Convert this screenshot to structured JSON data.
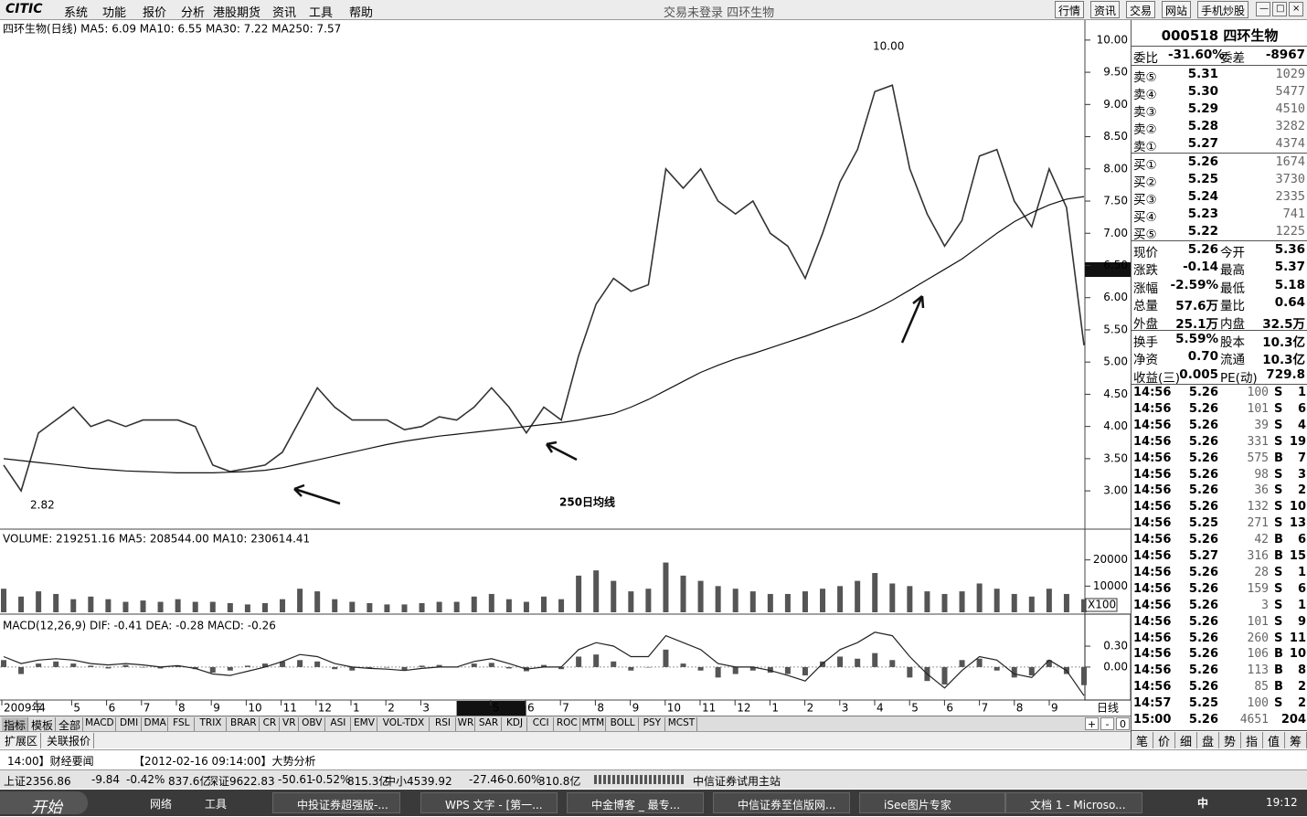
{
  "menu": {
    "logo": "CITIC",
    "items": [
      "系统",
      "功能",
      "报价",
      "分析",
      "港股期货",
      "资讯",
      "工具",
      "帮助"
    ],
    "status": "交易未登录  四环生物",
    "buttons": [
      "行情",
      "资讯",
      "交易",
      "网站",
      "手机炒股"
    ]
  },
  "chart_data": [
    {
      "type": "line",
      "title": "四环生物(日线) MA5: 6.09 MA10: 6.55 MA30: 7.22 MA250: 7.57",
      "ylim": [
        2.42,
        10.31
      ],
      "yticks": [
        {
          "value": 3,
          "label": "3.00"
        },
        {
          "value": 3.5,
          "label": "3.50"
        },
        {
          "value": 4,
          "label": "4.00"
        },
        {
          "value": 4.5,
          "label": "4.50"
        },
        {
          "value": 5,
          "label": "5.00"
        },
        {
          "value": 5.5,
          "label": "5.50"
        },
        {
          "value": 6,
          "label": "6.00"
        },
        {
          "value": 6.5,
          "label": "6.50"
        },
        {
          "value": 7,
          "label": "7.00"
        },
        {
          "value": 7.5,
          "label": "7.50"
        },
        {
          "value": 8,
          "label": "8.00"
        },
        {
          "value": 8.5,
          "label": "8.50"
        },
        {
          "value": 9,
          "label": "9.00"
        },
        {
          "value": 9.5,
          "label": "9.50"
        },
        {
          "value": 10,
          "label": "10.00"
        }
      ],
      "series": [
        {
          "type": "line",
          "color": "#333333",
          "values": [
            3.4,
            3.0,
            3.9,
            4.1,
            4.3,
            4.0,
            4.1,
            4.0,
            4.1,
            4.1,
            4.1,
            4.0,
            3.4,
            3.3,
            3.35,
            3.4,
            3.6,
            4.1,
            4.6,
            4.3,
            4.1,
            4.1,
            4.1,
            3.95,
            4.0,
            4.15,
            4.1,
            4.3,
            4.6,
            4.3,
            3.9,
            4.3,
            4.1,
            5.1,
            5.9,
            6.3,
            6.1,
            6.2,
            8.0,
            7.7,
            8.0,
            7.5,
            7.3,
            7.5,
            7.0,
            6.8,
            6.3,
            7.0,
            7.8,
            8.3,
            9.2,
            9.3,
            8.0,
            7.3,
            6.8,
            7.2,
            8.2,
            8.3,
            7.5,
            7.1,
            8.0,
            7.4,
            5.26
          ]
        },
        {
          "type": "line",
          "color": "#111111",
          "values": [
            3.5,
            3.47,
            3.44,
            3.41,
            3.38,
            3.35,
            3.33,
            3.31,
            3.3,
            3.29,
            3.28,
            3.28,
            3.28,
            3.29,
            3.3,
            3.32,
            3.36,
            3.42,
            3.48,
            3.54,
            3.6,
            3.66,
            3.72,
            3.77,
            3.81,
            3.85,
            3.88,
            3.91,
            3.94,
            3.97,
            4.0,
            4.03,
            4.06,
            4.1,
            4.15,
            4.2,
            4.3,
            4.42,
            4.56,
            4.7,
            4.84,
            4.95,
            5.05,
            5.13,
            5.22,
            5.31,
            5.4,
            5.5,
            5.6,
            5.7,
            5.82,
            5.96,
            6.12,
            6.28,
            6.44,
            6.6,
            6.8,
            7.0,
            7.18,
            7.32,
            7.44,
            7.53,
            7.57
          ]
        }
      ],
      "annotations": [
        "10.00",
        "2.82",
        "250日均线"
      ]
    },
    {
      "type": "bar",
      "title": "VOLUME: 219251.16 MA5: 208544.00 MA10: 230614.41",
      "ylim": [
        0,
        31400
      ],
      "yticks": [
        10000,
        20000
      ],
      "unit": "X100",
      "series": [
        {
          "type": "bar",
          "color": "#555555",
          "values": [
            9000,
            6000,
            8000,
            7000,
            5000,
            6000,
            5000,
            4000,
            4500,
            4000,
            5000,
            4000,
            4000,
            3500,
            3000,
            3500,
            5000,
            9000,
            8000,
            5000,
            4000,
            3500,
            3000,
            3000,
            3500,
            4000,
            4000,
            6000,
            7000,
            5000,
            4000,
            6000,
            5000,
            14000,
            16000,
            12000,
            8000,
            9000,
            19000,
            14000,
            12000,
            10000,
            9000,
            8000,
            7000,
            7000,
            8000,
            9000,
            10000,
            12000,
            15000,
            11000,
            10000,
            8000,
            7000,
            8000,
            11000,
            9000,
            7000,
            6000,
            9000,
            7000,
            5000
          ]
        }
      ]
    },
    {
      "type": "bar",
      "title": "MACD(12,26,9) DIF: -0.41 DEA: -0.28 MACD: -0.26",
      "ylim": [
        -0.46,
        0.72
      ],
      "yticks": [
        {
          "value": 0.3,
          "label": "0.30"
        },
        {
          "value": 0,
          "label": "0.00"
        }
      ],
      "series": [
        {
          "type": "bar",
          "color": "#555555",
          "values": [
            0.1,
            -0.1,
            0.05,
            0.08,
            0.05,
            0.02,
            -0.02,
            0.03,
            0.0,
            -0.02,
            0.02,
            -0.03,
            -0.08,
            -0.05,
            0.02,
            0.05,
            0.08,
            0.1,
            0.08,
            -0.03,
            -0.05,
            -0.02,
            0.0,
            -0.04,
            0.02,
            0.03,
            0.0,
            0.05,
            0.06,
            -0.02,
            -0.06,
            0.03,
            -0.03,
            0.15,
            0.18,
            0.08,
            -0.05,
            0.0,
            0.25,
            0.05,
            -0.05,
            -0.15,
            -0.1,
            -0.05,
            -0.08,
            -0.1,
            -0.12,
            0.08,
            0.15,
            0.12,
            0.2,
            0.1,
            -0.15,
            -0.2,
            -0.25,
            0.1,
            0.12,
            -0.05,
            -0.15,
            -0.12,
            0.1,
            -0.1,
            -0.26
          ]
        },
        {
          "type": "line",
          "color": "#222222",
          "values": [
            0.15,
            0.05,
            0.1,
            0.12,
            0.1,
            0.05,
            0.03,
            0.05,
            0.03,
            0.0,
            0.02,
            -0.02,
            -0.1,
            -0.12,
            -0.06,
            0.0,
            0.08,
            0.18,
            0.15,
            0.05,
            0.0,
            -0.02,
            -0.03,
            -0.05,
            -0.02,
            0.0,
            0.0,
            0.08,
            0.12,
            0.05,
            -0.03,
            0.0,
            0.0,
            0.25,
            0.35,
            0.3,
            0.15,
            0.15,
            0.45,
            0.35,
            0.25,
            0.05,
            0.0,
            0.0,
            -0.05,
            -0.12,
            -0.2,
            0.05,
            0.25,
            0.35,
            0.5,
            0.45,
            0.15,
            -0.1,
            -0.3,
            -0.05,
            0.15,
            0.1,
            -0.1,
            -0.15,
            0.1,
            -0.05,
            -0.41
          ]
        }
      ]
    }
  ],
  "x_axis": {
    "months": [
      "2009年",
      "4",
      "5",
      "6",
      "7",
      "8",
      "9",
      "10",
      "11",
      "12",
      "1",
      "2",
      "3",
      null,
      "5",
      "6",
      "7",
      "8",
      "9",
      "10",
      "11",
      "12",
      "1",
      "2",
      "3",
      "4",
      "5",
      "6",
      "7",
      "8",
      "9"
    ],
    "end_label": "日线"
  },
  "indicator_tabs": [
    "指标",
    "模板",
    "全部",
    "MACD",
    "DMI",
    "DMA",
    "FSL",
    "TRIX",
    "BRAR",
    "CR",
    "VR",
    "OBV",
    "ASI",
    "EMV",
    "VOL-TDX",
    "RSI",
    "WR",
    "SAR",
    "KDJ",
    "CCI",
    "ROC",
    "MTM",
    "BOLL",
    "PSY",
    "MCST"
  ],
  "extra_tabs": [
    "扩展区",
    "关联报价"
  ],
  "quote": {
    "code": "000518 四环生物",
    "ratio": [
      "委比",
      "-31.60%",
      "委差",
      "-8967"
    ],
    "book": [
      [
        "卖⑤",
        "5.31",
        "1029"
      ],
      [
        "卖④",
        "5.30",
        "5477"
      ],
      [
        "卖③",
        "5.29",
        "4510"
      ],
      [
        "卖②",
        "5.28",
        "3282"
      ],
      [
        "卖①",
        "5.27",
        "4374"
      ],
      [
        "买①",
        "5.26",
        "1674"
      ],
      [
        "买②",
        "5.25",
        "3730"
      ],
      [
        "买③",
        "5.24",
        "2335"
      ],
      [
        "买④",
        "5.23",
        "741"
      ],
      [
        "买⑤",
        "5.22",
        "1225"
      ]
    ],
    "stats": [
      [
        "现价",
        "5.26",
        "今开",
        "5.36"
      ],
      [
        "涨跌",
        "-0.14",
        "最高",
        "5.37"
      ],
      [
        "涨幅",
        "-2.59%",
        "最低",
        "5.18"
      ],
      [
        "总量",
        "57.6万",
        "量比",
        "0.64"
      ],
      [
        "外盘",
        "25.1万",
        "内盘",
        "32.5万"
      ],
      [
        "换手",
        "5.59%",
        "股本",
        "10.3亿"
      ],
      [
        "净资",
        "0.70",
        "流通",
        "10.3亿"
      ],
      [
        "收益(三)",
        "0.005",
        "PE(动)",
        "729.8"
      ]
    ],
    "ticks": [
      [
        "14:56",
        "5.26",
        "100",
        "S",
        "1"
      ],
      [
        "14:56",
        "5.26",
        "101",
        "S",
        "6"
      ],
      [
        "14:56",
        "5.26",
        "39",
        "S",
        "4"
      ],
      [
        "14:56",
        "5.26",
        "331",
        "S",
        "19"
      ],
      [
        "14:56",
        "5.26",
        "575",
        "B",
        "7"
      ],
      [
        "14:56",
        "5.26",
        "98",
        "S",
        "3"
      ],
      [
        "14:56",
        "5.26",
        "36",
        "S",
        "2"
      ],
      [
        "14:56",
        "5.26",
        "132",
        "S",
        "10"
      ],
      [
        "14:56",
        "5.25",
        "271",
        "S",
        "13"
      ],
      [
        "14:56",
        "5.26",
        "42",
        "B",
        "6"
      ],
      [
        "14:56",
        "5.27",
        "316",
        "B",
        "15"
      ],
      [
        "14:56",
        "5.26",
        "28",
        "S",
        "1"
      ],
      [
        "14:56",
        "5.26",
        "159",
        "S",
        "6"
      ],
      [
        "14:56",
        "5.26",
        "3",
        "S",
        "1"
      ],
      [
        "14:56",
        "5.26",
        "101",
        "S",
        "9"
      ],
      [
        "14:56",
        "5.26",
        "260",
        "S",
        "11"
      ],
      [
        "14:56",
        "5.26",
        "106",
        "B",
        "10"
      ],
      [
        "14:56",
        "5.26",
        "113",
        "B",
        "8"
      ],
      [
        "14:56",
        "5.26",
        "85",
        "B",
        "2"
      ],
      [
        "14:57",
        "5.25",
        "100",
        "S",
        "2"
      ],
      [
        "15:00",
        "5.26",
        "4651",
        "204"
      ]
    ],
    "tabs": [
      "笔",
      "价",
      "细",
      "盘",
      "势",
      "指",
      "值",
      "筹"
    ]
  },
  "news": [
    "14:00】财经要闻",
    "【2012-02-16 09:14:00】大势分析"
  ],
  "index_bar": [
    "上证2356.86",
    "-9.84",
    "-0.42%",
    "837.6亿",
    "深证9622.83",
    "-50.61",
    "-0.52%",
    "815.3亿",
    "中小4539.92",
    "-27.46",
    "-0.60%",
    "310.8亿",
    "中信证券试用主站"
  ],
  "taskbar": {
    "start": "开始",
    "items": [
      "网络",
      "工具",
      "中投证券超强版-...",
      "WPS 文字 - [第一...",
      "中金博客 _ 最专...",
      "中信证券至信版网...",
      "iSee图片专家",
      "文档 1 - Microso..."
    ],
    "ime": "中",
    "clock": "19:12"
  }
}
